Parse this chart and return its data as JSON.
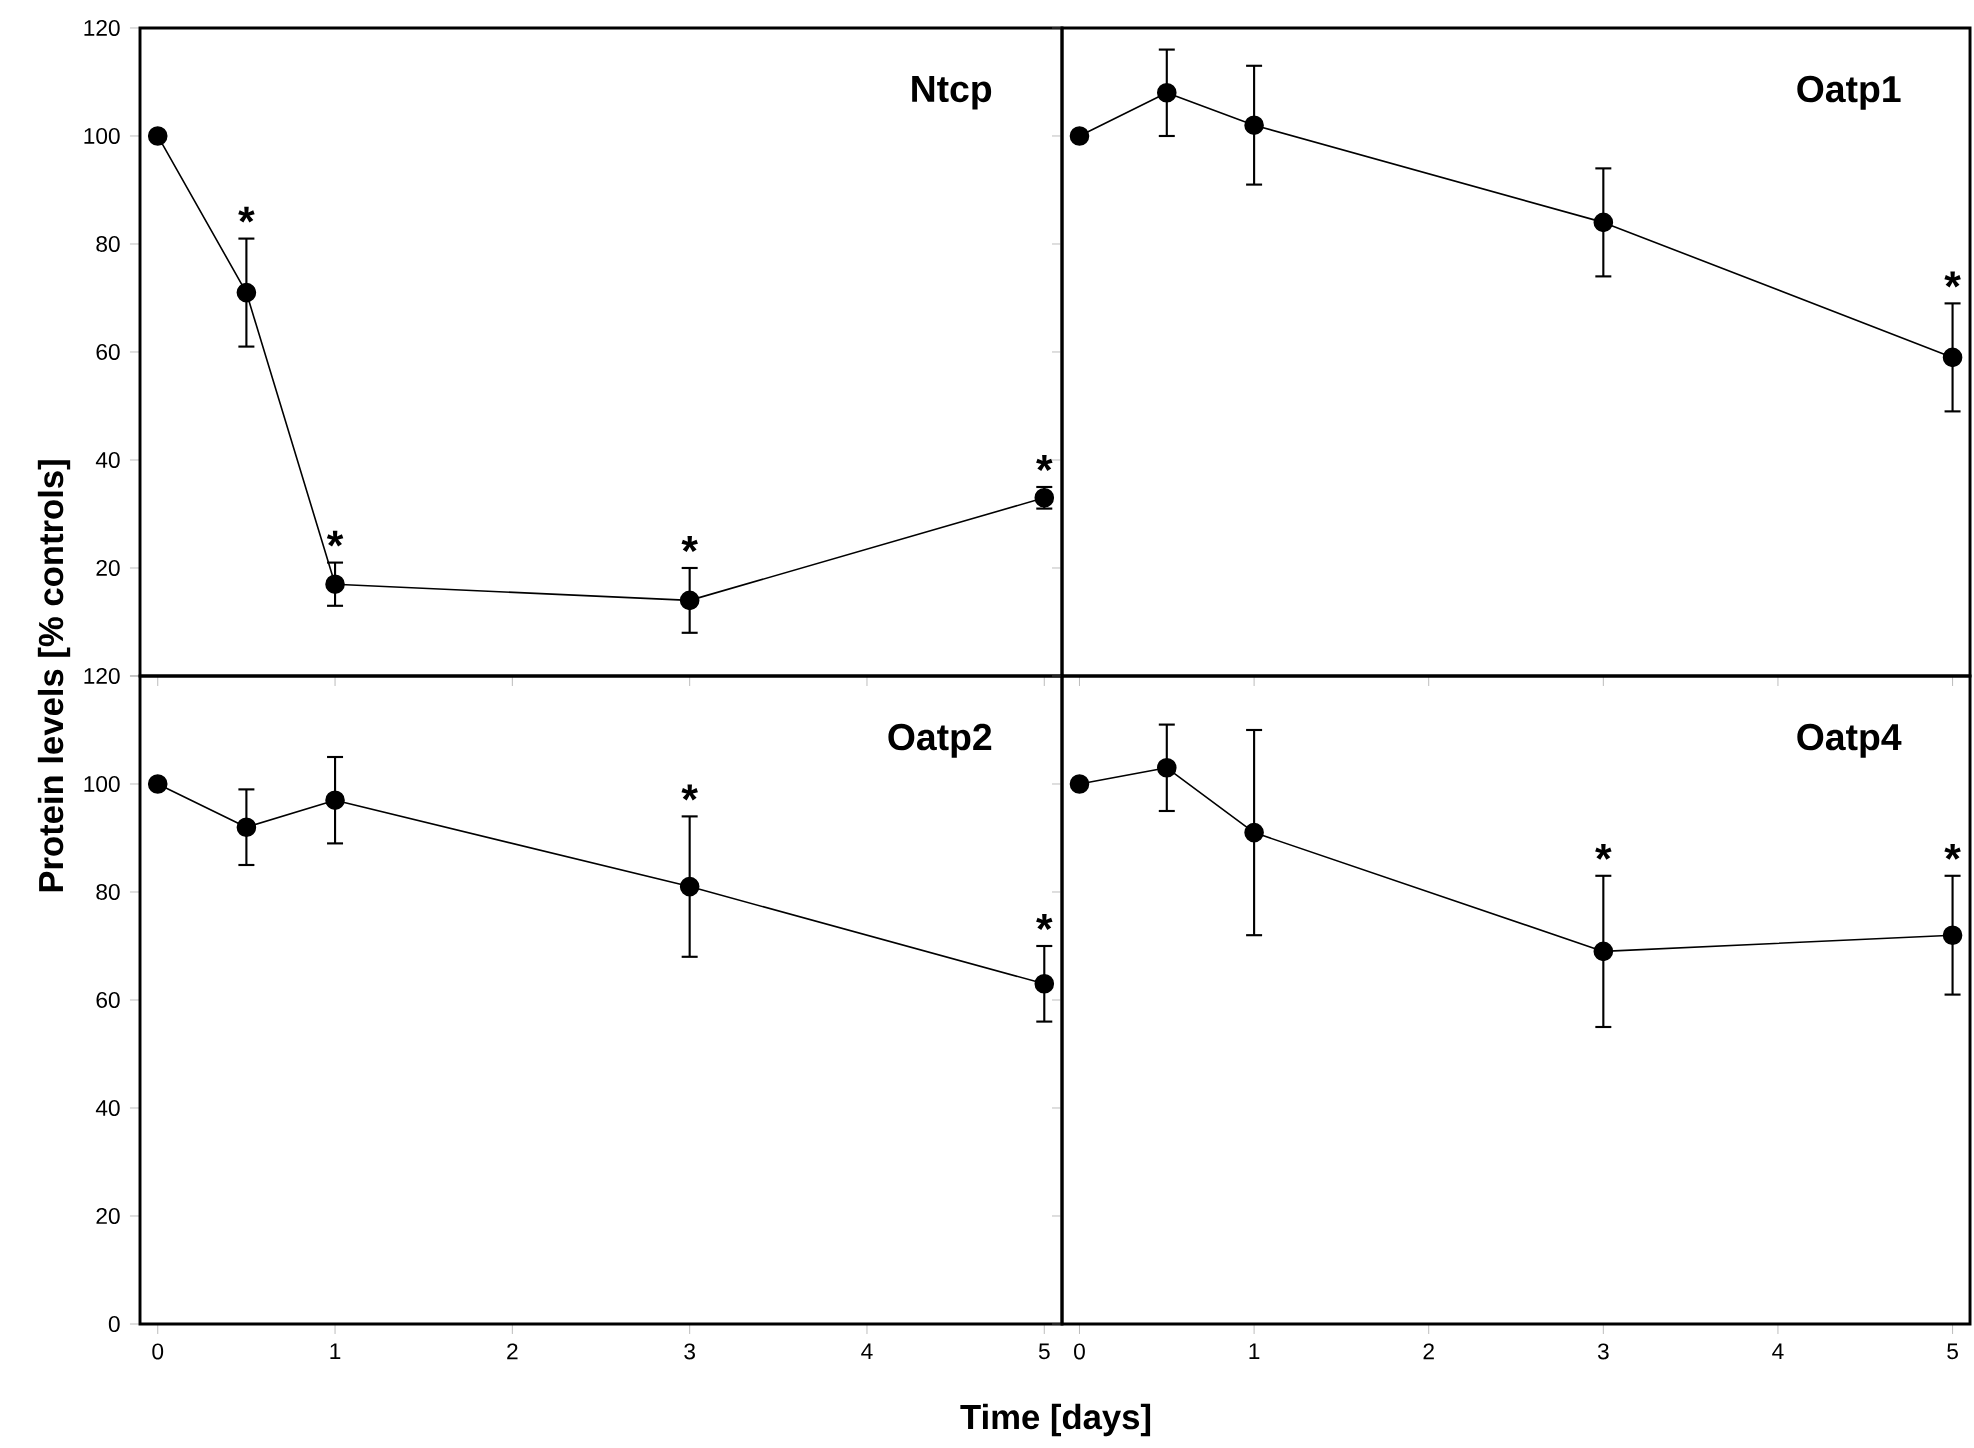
{
  "chart_data": [
    {
      "type": "line",
      "title": "Ntcp",
      "ylabel": "Protein levels [% controls]",
      "x": [
        0,
        0.5,
        1,
        3,
        5
      ],
      "xlim": [
        -0.1,
        5.1
      ],
      "ylim": [
        0,
        120
      ],
      "xticks": [
        0,
        1,
        2,
        3,
        4,
        5
      ],
      "yticks": [
        {
          "value": 0,
          "label": null
        },
        20,
        40,
        60,
        80,
        100,
        120
      ],
      "tick_labels": "y",
      "marker": "circle",
      "line_style": "solid",
      "series": [
        {
          "color": "#000000",
          "values": [
            100,
            71,
            17,
            14,
            33
          ],
          "errors": [
            null,
            10,
            4,
            6,
            2
          ]
        }
      ],
      "annotations": [
        {
          "text": "*",
          "x": 0.5,
          "y": 71
        },
        {
          "text": "*",
          "x": 1,
          "y": 17
        },
        {
          "text": "*",
          "x": 3,
          "y": 14
        },
        {
          "text": "*",
          "x": 5,
          "y": 33
        }
      ]
    },
    {
      "type": "line",
      "title": "Oatp1",
      "x": [
        0,
        0.5,
        1,
        3,
        5
      ],
      "xlim": [
        -0.1,
        5.1
      ],
      "ylim": [
        0,
        120
      ],
      "xticks": [
        0,
        1,
        2,
        3,
        4,
        5
      ],
      "yticks": [
        0,
        20,
        40,
        60,
        80,
        100,
        120
      ],
      "tick_labels": false,
      "marker": "circle",
      "line_style": "solid",
      "series": [
        {
          "color": "#000000",
          "values": [
            100,
            108,
            102,
            84,
            59
          ],
          "errors": [
            null,
            8,
            11,
            10,
            10
          ]
        }
      ],
      "annotations": [
        {
          "text": "*",
          "x": 5,
          "y": 59
        }
      ]
    },
    {
      "type": "line",
      "title": "Oatp2",
      "xlabel": "Time [days]",
      "x": [
        0,
        0.5,
        1,
        3,
        5
      ],
      "xlim": [
        -0.1,
        5.1
      ],
      "ylim": [
        0,
        120
      ],
      "xticks": [
        0,
        1,
        2,
        3,
        4,
        5
      ],
      "yticks": [
        0,
        20,
        40,
        60,
        80,
        100,
        120
      ],
      "marker": "circle",
      "line_style": "solid",
      "series": [
        {
          "color": "#000000",
          "values": [
            100,
            92,
            97,
            81,
            63
          ],
          "errors": [
            null,
            7,
            8,
            13,
            7
          ]
        }
      ],
      "annotations": [
        {
          "text": "*",
          "x": 3,
          "y": 81
        },
        {
          "text": "*",
          "x": 5,
          "y": 63
        }
      ]
    },
    {
      "type": "line",
      "title": "Oatp4",
      "x": [
        0,
        0.5,
        1,
        3,
        5
      ],
      "xlim": [
        -0.1,
        5.1
      ],
      "ylim": [
        0,
        120
      ],
      "xticks": [
        0,
        1,
        2,
        3,
        4,
        5
      ],
      "yticks": [
        0,
        20,
        40,
        60,
        80,
        100,
        120
      ],
      "tick_labels": "x",
      "marker": "circle",
      "line_style": "solid",
      "series": [
        {
          "color": "#000000",
          "values": [
            100,
            103,
            91,
            69,
            72
          ],
          "errors": [
            null,
            8,
            19,
            14,
            11
          ]
        }
      ],
      "annotations": [
        {
          "text": "*",
          "x": 3,
          "y": 69
        },
        {
          "text": "*",
          "x": 5,
          "y": 72
        }
      ]
    }
  ]
}
